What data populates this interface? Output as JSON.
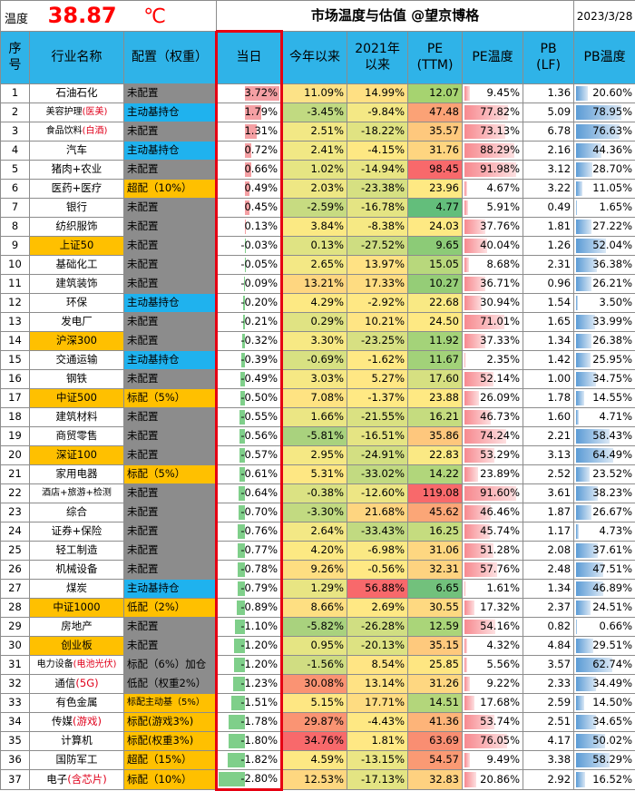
{
  "header": {
    "temp_label": "温度",
    "temp_value": "38.87",
    "temp_unit": "℃",
    "title": "市场温度与估值 @望京博格",
    "date": "2023/3/28"
  },
  "columns": [
    "序号",
    "行业名称",
    "配置（权重）",
    "当日",
    "今年以来",
    "2021年以来",
    "PE (TTM)",
    "PE温度",
    "PB (LF)",
    "PB温度"
  ],
  "colors": {
    "header_bg": "#2fb3e8",
    "alloc_gray": "#8c8c8c",
    "alloc_blue": "#1fb2ee",
    "alloc_orange": "#ffc000",
    "temp_red": "#ff0000",
    "pe_bar": "#f7898f",
    "pb_bar": "#5b9bd5",
    "day_pos_bar": "#f5a0a4",
    "day_neg_bar": "#7fcf8a"
  },
  "rows": [
    {
      "no": "1",
      "name": "石油石化",
      "name_red": "",
      "name_bg": "none",
      "alloc": "未配置",
      "alloc_bg": "gray",
      "day": 3.72,
      "ytd": "11.09%",
      "ytd_c": "#fce287",
      "since21": "14.99%",
      "s21_c": "#ffe083",
      "pe": "12.07",
      "pe_c": "#a6d370",
      "pet": 9.45,
      "pb": "1.36",
      "pbt": 20.6
    },
    {
      "no": "2",
      "name": "美容护理",
      "name_red": "(医美)",
      "name_bg": "none",
      "alloc": "主动基持仓",
      "alloc_bg": "blue",
      "day": 1.79,
      "ytd": "-3.45%",
      "ytd_c": "#c1da81",
      "since21": "-9.84%",
      "s21_c": "#f4e885",
      "pe": "47.48",
      "pe_c": "#fba276",
      "pet": 77.82,
      "pb": "5.09",
      "pbt": 78.95
    },
    {
      "no": "3",
      "name": "食品饮料",
      "name_red": "(白酒)",
      "name_bg": "none",
      "alloc": "未配置",
      "alloc_bg": "gray",
      "day": 1.31,
      "ytd": "2.51%",
      "ytd_c": "#f2e885",
      "since21": "-18.22%",
      "s21_c": "#e0e382",
      "pe": "35.57",
      "pe_c": "#fec87d",
      "pet": 73.13,
      "pb": "6.78",
      "pbt": 76.63
    },
    {
      "no": "4",
      "name": "汽车",
      "name_red": "",
      "name_bg": "none",
      "alloc": "主动基持仓",
      "alloc_bg": "blue",
      "day": 0.72,
      "ytd": "2.41%",
      "ytd_c": "#f1e885",
      "since21": "-4.15%",
      "s21_c": "#fee883",
      "pe": "31.76",
      "pe_c": "#fed580",
      "pet": 88.29,
      "pb": "2.16",
      "pbt": 44.36
    },
    {
      "no": "5",
      "name": "猪肉+农业",
      "name_red": "",
      "name_bg": "none",
      "alloc": "未配置",
      "alloc_bg": "gray",
      "day": 0.66,
      "ytd": "1.02%",
      "ytd_c": "#e6e583",
      "since21": "-14.94%",
      "s21_c": "#e8e583",
      "pe": "98.45",
      "pe_c": "#f8696b",
      "pet": 91.98,
      "pb": "3.12",
      "pbt": 28.7
    },
    {
      "no": "6",
      "name": "医药+医疗",
      "name_red": "",
      "name_bg": "none",
      "alloc": "超配（10%）",
      "alloc_bg": "orange",
      "day": 0.49,
      "ytd": "2.03%",
      "ytd_c": "#eee784",
      "since21": "-23.38%",
      "s21_c": "#d6e082",
      "pe": "23.96",
      "pe_c": "#fee983",
      "pet": 4.67,
      "pb": "3.22",
      "pbt": 11.05
    },
    {
      "no": "7",
      "name": "银行",
      "name_red": "",
      "name_bg": "none",
      "alloc": "未配置",
      "alloc_bg": "gray",
      "day": 0.45,
      "ytd": "-2.59%",
      "ytd_c": "#c7db81",
      "since21": "-16.78%",
      "s21_c": "#e4e483",
      "pe": "4.77",
      "pe_c": "#63be7b",
      "pet": 5.91,
      "pb": "0.49",
      "pbt": 1.65
    },
    {
      "no": "8",
      "name": "纺织服饰",
      "name_red": "",
      "name_bg": "none",
      "alloc": "未配置",
      "alloc_bg": "gray",
      "day": 0.13,
      "ytd": "3.84%",
      "ytd_c": "#fbe983",
      "since21": "-8.38%",
      "s21_c": "#f6e984",
      "pe": "24.03",
      "pe_c": "#fee983",
      "pet": 37.76,
      "pb": "1.81",
      "pbt": 27.22
    },
    {
      "no": "9",
      "name": "上证50",
      "name_red": "",
      "name_bg": "orange",
      "alloc": "未配置",
      "alloc_bg": "gray",
      "day": -0.03,
      "ytd": "0.13%",
      "ytd_c": "#dfe383",
      "since21": "-27.52%",
      "s21_c": "#cedd81",
      "pe": "9.65",
      "pe_c": "#8ccb77",
      "pet": 40.04,
      "pb": "1.26",
      "pbt": 52.04
    },
    {
      "no": "10",
      "name": "基础化工",
      "name_red": "",
      "name_bg": "none",
      "alloc": "未配置",
      "alloc_bg": "gray",
      "day": -0.05,
      "ytd": "2.65%",
      "ytd_c": "#f3e885",
      "since21": "13.97%",
      "s21_c": "#ffe284",
      "pe": "15.05",
      "pe_c": "#b8d87c",
      "pet": 8.68,
      "pb": "2.31",
      "pbt": 36.38
    },
    {
      "no": "11",
      "name": "建筑装饰",
      "name_red": "",
      "name_bg": "none",
      "alloc": "未配置",
      "alloc_bg": "gray",
      "day": -0.09,
      "ytd": "13.21%",
      "ytd_c": "#fed680",
      "since21": "17.33%",
      "s21_c": "#fedc81",
      "pe": "10.27",
      "pe_c": "#95cd77",
      "pet": 36.71,
      "pb": "0.96",
      "pbt": 26.21
    },
    {
      "no": "12",
      "name": "环保",
      "name_red": "",
      "name_bg": "none",
      "alloc": "主动基持仓",
      "alloc_bg": "blue",
      "day": -0.2,
      "ytd": "4.29%",
      "ytd_c": "#fde983",
      "since21": "-2.92%",
      "s21_c": "#ffe884",
      "pe": "22.68",
      "pe_c": "#f9e984",
      "pet": 30.94,
      "pb": "1.54",
      "pbt": 3.5
    },
    {
      "no": "13",
      "name": "发电厂",
      "name_red": "",
      "name_bg": "none",
      "alloc": "未配置",
      "alloc_bg": "gray",
      "day": -0.21,
      "ytd": "0.29%",
      "ytd_c": "#e0e383",
      "since21": "10.21%",
      "s21_c": "#ffe584",
      "pe": "24.50",
      "pe_c": "#fee983",
      "pet": 71.01,
      "pb": "1.65",
      "pbt": 33.99
    },
    {
      "no": "14",
      "name": "沪深300",
      "name_red": "",
      "name_bg": "orange",
      "alloc": "未配置",
      "alloc_bg": "gray",
      "day": -0.32,
      "ytd": "3.30%",
      "ytd_c": "#f7e984",
      "since21": "-23.25%",
      "s21_c": "#d7e082",
      "pe": "11.92",
      "pe_c": "#a4d379",
      "pet": 37.33,
      "pb": "1.34",
      "pbt": 26.38
    },
    {
      "no": "15",
      "name": "交通运输",
      "name_red": "",
      "name_bg": "none",
      "alloc": "主动基持仓",
      "alloc_bg": "blue",
      "day": -0.39,
      "ytd": "-0.69%",
      "ytd_c": "#d8e182",
      "since21": "-1.62%",
      "s21_c": "#ffe984",
      "pe": "11.67",
      "pe_c": "#a2d279",
      "pet": 2.35,
      "pb": "1.42",
      "pbt": 25.95
    },
    {
      "no": "16",
      "name": "钢铁",
      "name_red": "",
      "name_bg": "none",
      "alloc": "未配置",
      "alloc_bg": "gray",
      "day": -0.49,
      "ytd": "3.03%",
      "ytd_c": "#f6e884",
      "since21": "5.27%",
      "s21_c": "#ffe784",
      "pe": "17.60",
      "pe_c": "#d6e081",
      "pet": 52.14,
      "pb": "1.00",
      "pbt": 34.75
    },
    {
      "no": "17",
      "name": "中证500",
      "name_red": "",
      "name_bg": "orange",
      "alloc": "标配（5%）",
      "alloc_bg": "orange",
      "day": -0.5,
      "ytd": "7.08%",
      "ytd_c": "#fee382",
      "since21": "-1.37%",
      "s21_c": "#ffe984",
      "pe": "23.88",
      "pe_c": "#fee983",
      "pet": 26.09,
      "pb": "1.78",
      "pbt": 14.55
    },
    {
      "no": "18",
      "name": "建筑材料",
      "name_red": "",
      "name_bg": "none",
      "alloc": "未配置",
      "alloc_bg": "gray",
      "day": -0.55,
      "ytd": "1.66%",
      "ytd_c": "#ebe684",
      "since21": "-21.55%",
      "s21_c": "#dae182",
      "pe": "16.21",
      "pe_c": "#c5dc7f",
      "pet": 46.73,
      "pb": "1.60",
      "pbt": 4.71
    },
    {
      "no": "19",
      "name": "商贸零售",
      "name_red": "",
      "name_bg": "none",
      "alloc": "未配置",
      "alloc_bg": "gray",
      "day": -0.56,
      "ytd": "-5.81%",
      "ytd_c": "#a9d27e",
      "since21": "-16.51%",
      "s21_c": "#e5e483",
      "pe": "35.86",
      "pe_c": "#fec77d",
      "pet": 74.24,
      "pb": "2.21",
      "pbt": 58.43
    },
    {
      "no": "20",
      "name": "深证100",
      "name_red": "",
      "name_bg": "orange",
      "alloc": "未配置",
      "alloc_bg": "gray",
      "day": -0.57,
      "ytd": "2.95%",
      "ytd_c": "#f5e884",
      "since21": "-24.91%",
      "s21_c": "#d3df82",
      "pe": "22.83",
      "pe_c": "#fae984",
      "pet": 53.29,
      "pb": "3.13",
      "pbt": 64.49
    },
    {
      "no": "21",
      "name": "家用电器",
      "name_red": "",
      "name_bg": "none",
      "alloc": "标配（5%）",
      "alloc_bg": "orange",
      "day": -0.61,
      "ytd": "5.31%",
      "ytd_c": "#fee783",
      "since21": "-33.02%",
      "s21_c": "#c2da81",
      "pe": "14.22",
      "pe_c": "#b1d67b",
      "pet": 23.89,
      "pb": "2.52",
      "pbt": 23.52
    },
    {
      "no": "22",
      "name": "酒店+旅游+检测",
      "name_red": "",
      "name_bg": "none",
      "alloc": "未配置",
      "alloc_bg": "gray",
      "day": -0.64,
      "ytd": "-0.38%",
      "ytd_c": "#dbe283",
      "since21": "-12.60%",
      "s21_c": "#ede684",
      "pe": "119.08",
      "pe_c": "#f8696b",
      "pet": 91.6,
      "pb": "3.61",
      "pbt": 38.23
    },
    {
      "no": "23",
      "name": "综合",
      "name_red": "",
      "name_bg": "none",
      "alloc": "未配置",
      "alloc_bg": "gray",
      "day": -0.7,
      "ytd": "-3.30%",
      "ytd_c": "#c2da81",
      "since21": "21.68%",
      "s21_c": "#fed580",
      "pe": "45.62",
      "pe_c": "#fba677",
      "pet": 46.46,
      "pb": "1.87",
      "pbt": 26.67
    },
    {
      "no": "24",
      "name": "证券+保险",
      "name_red": "",
      "name_bg": "none",
      "alloc": "未配置",
      "alloc_bg": "gray",
      "day": -0.76,
      "ytd": "2.64%",
      "ytd_c": "#f3e885",
      "since21": "-33.43%",
      "s21_c": "#c1da81",
      "pe": "16.25",
      "pe_c": "#c5dc7f",
      "pet": 45.74,
      "pb": "1.17",
      "pbt": 4.73
    },
    {
      "no": "25",
      "name": "轻工制造",
      "name_red": "",
      "name_bg": "none",
      "alloc": "未配置",
      "alloc_bg": "gray",
      "day": -0.77,
      "ytd": "4.20%",
      "ytd_c": "#fce983",
      "since21": "-6.98%",
      "s21_c": "#fae984",
      "pe": "31.06",
      "pe_c": "#fed781",
      "pet": 51.28,
      "pb": "2.08",
      "pbt": 37.61
    },
    {
      "no": "26",
      "name": "机械设备",
      "name_red": "",
      "name_bg": "none",
      "alloc": "未配置",
      "alloc_bg": "gray",
      "day": -0.78,
      "ytd": "9.26%",
      "ytd_c": "#fede81",
      "since21": "-0.56%",
      "s21_c": "#ffe984",
      "pe": "32.31",
      "pe_c": "#fed380",
      "pet": 57.76,
      "pb": "2.48",
      "pbt": 47.51
    },
    {
      "no": "27",
      "name": "煤炭",
      "name_red": "",
      "name_bg": "none",
      "alloc": "主动基持仓",
      "alloc_bg": "blue",
      "day": -0.79,
      "ytd": "1.29%",
      "ytd_c": "#e8e583",
      "since21": "56.88%",
      "s21_c": "#f8696b",
      "pe": "6.65",
      "pe_c": "#72c17c",
      "pet": 1.61,
      "pb": "1.34",
      "pbt": 46.89
    },
    {
      "no": "28",
      "name": "中证1000",
      "name_red": "",
      "name_bg": "orange",
      "alloc": "低配（2%）",
      "alloc_bg": "orange",
      "day": -0.89,
      "ytd": "8.66%",
      "ytd_c": "#fedf82",
      "since21": "2.69%",
      "s21_c": "#ffe884",
      "pe": "30.55",
      "pe_c": "#fed981",
      "pet": 17.32,
      "pb": "2.37",
      "pbt": 24.51
    },
    {
      "no": "29",
      "name": "房地产",
      "name_red": "",
      "name_bg": "none",
      "alloc": "未配置",
      "alloc_bg": "gray",
      "day": -1.1,
      "ytd": "-5.82%",
      "ytd_c": "#a9d27e",
      "since21": "-26.28%",
      "s21_c": "#d0de82",
      "pe": "12.59",
      "pe_c": "#aad579",
      "pet": 54.16,
      "pb": "0.82",
      "pbt": 0.66
    },
    {
      "no": "30",
      "name": "创业板",
      "name_red": "",
      "name_bg": "orange",
      "alloc": "未配置",
      "alloc_bg": "gray",
      "day": -1.2,
      "ytd": "0.95%",
      "ytd_c": "#e5e583",
      "since21": "-20.13%",
      "s21_c": "#dde282",
      "pe": "35.15",
      "pe_c": "#fec97d",
      "pet": 4.32,
      "pb": "4.84",
      "pbt": 29.51
    },
    {
      "no": "31",
      "name": "电力设备",
      "name_red": "(电池光伏)",
      "name_bg": "none",
      "alloc": "标配（6%）加仓",
      "alloc_bg": "gray",
      "day": -1.2,
      "ytd": "-1.56%",
      "ytd_c": "#d0dd82",
      "since21": "8.54%",
      "s21_c": "#ffe584",
      "pe": "25.85",
      "pe_c": "#fee682",
      "pet": 5.56,
      "pb": "3.57",
      "pbt": 62.74
    },
    {
      "no": "32",
      "name": "通信",
      "name_red": "(5G)",
      "name_bg": "none",
      "alloc": "低配（权重2%）",
      "alloc_bg": "gray",
      "day": -1.23,
      "ytd": "30.08%",
      "ytd_c": "#fa9373",
      "since21": "13.14%",
      "s21_c": "#ffe284",
      "pe": "31.26",
      "pe_c": "#fed781",
      "pet": 9.22,
      "pb": "2.33",
      "pbt": 34.49
    },
    {
      "no": "33",
      "name": "有色金属",
      "name_red": "",
      "name_bg": "none",
      "alloc": "标配主动基（5%）",
      "alloc_bg": "orange",
      "day": -1.51,
      "ytd": "5.15%",
      "ytd_c": "#fee783",
      "since21": "17.71%",
      "s21_c": "#fedc81",
      "pe": "14.51",
      "pe_c": "#b3d67b",
      "pet": 17.68,
      "pb": "2.59",
      "pbt": 14.5
    },
    {
      "no": "34",
      "name": "传媒",
      "name_red": "(游戏)",
      "name_bg": "none",
      "alloc": "标配(游戏3%)",
      "alloc_bg": "orange",
      "day": -1.78,
      "ytd": "29.87%",
      "ytd_c": "#fa9473",
      "since21": "-4.43%",
      "s21_c": "#fee883",
      "pe": "41.36",
      "pe_c": "#fdb479",
      "pet": 53.74,
      "pb": "2.51",
      "pbt": 34.65
    },
    {
      "no": "35",
      "name": "计算机",
      "name_red": "",
      "name_bg": "none",
      "alloc": "标配(权重3%)",
      "alloc_bg": "orange",
      "day": -1.8,
      "ytd": "34.76%",
      "ytd_c": "#f8696b",
      "since21": "1.81%",
      "s21_c": "#ffe884",
      "pe": "63.69",
      "pe_c": "#f98e72",
      "pet": 76.05,
      "pb": "4.17",
      "pbt": 50.02
    },
    {
      "no": "36",
      "name": "国防军工",
      "name_red": "",
      "name_bg": "none",
      "alloc": "超配（15%）",
      "alloc_bg": "orange",
      "day": -1.82,
      "ytd": "4.59%",
      "ytd_c": "#fde883",
      "since21": "-13.15%",
      "s21_c": "#ebe684",
      "pe": "54.57",
      "pe_c": "#fa9a74",
      "pet": 9.49,
      "pb": "3.38",
      "pbt": 58.29
    },
    {
      "no": "37",
      "name": "电子",
      "name_red": "(含芯片)",
      "name_bg": "none",
      "alloc": "标配（10%）",
      "alloc_bg": "orange",
      "day": -2.8,
      "ytd": "12.53%",
      "ytd_c": "#fed780",
      "since21": "-17.13%",
      "s21_c": "#e3e483",
      "pe": "32.83",
      "pe_c": "#fed180",
      "pet": 20.86,
      "pb": "2.92",
      "pbt": 16.52
    }
  ]
}
